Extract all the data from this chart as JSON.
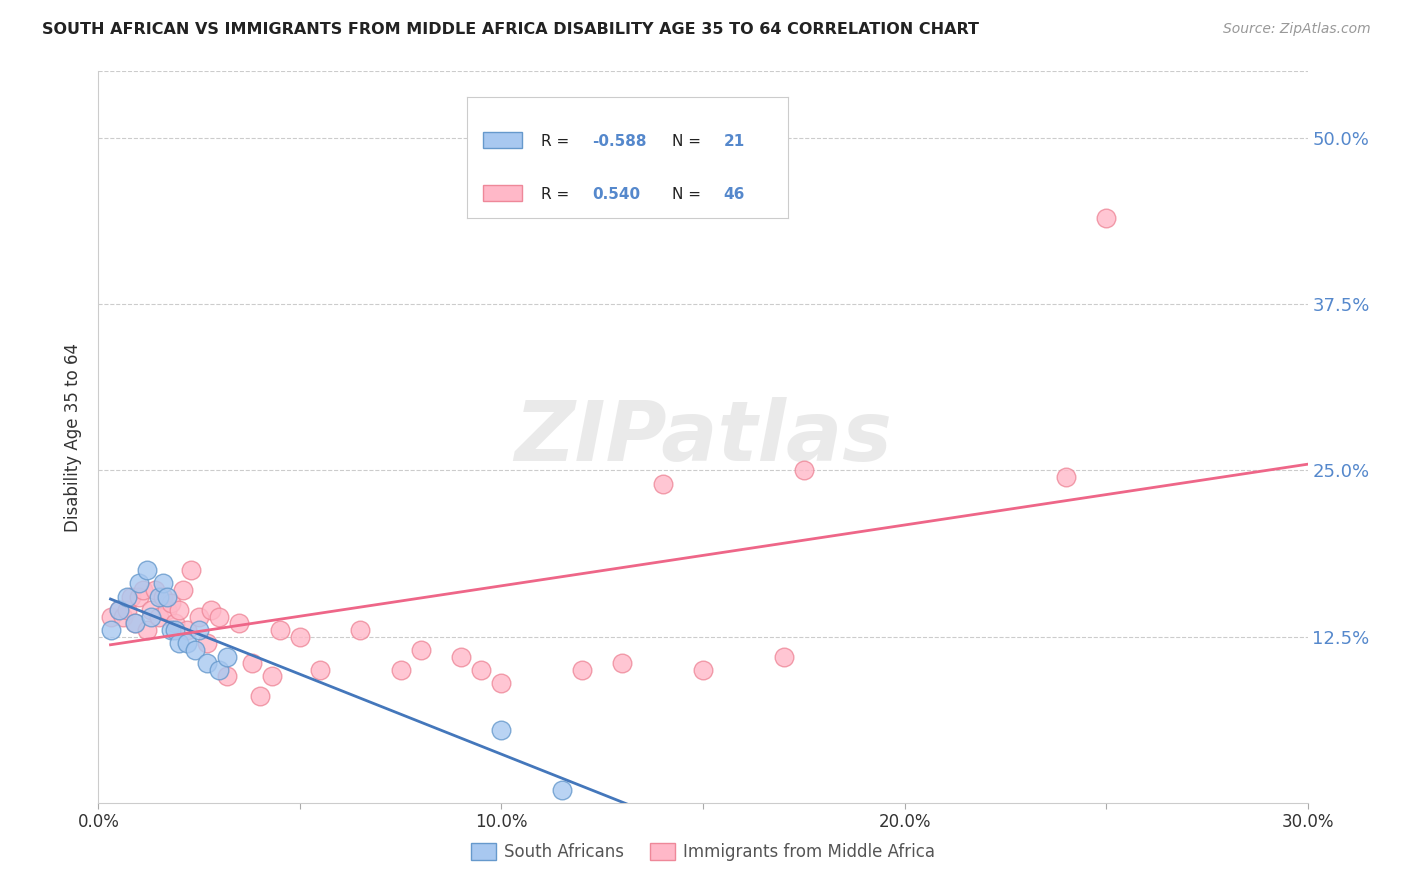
{
  "title": "SOUTH AFRICAN VS IMMIGRANTS FROM MIDDLE AFRICA DISABILITY AGE 35 TO 64 CORRELATION CHART",
  "source": "Source: ZipAtlas.com",
  "ylabel": "Disability Age 35 to 64",
  "xlim": [
    0.0,
    0.3
  ],
  "ylim": [
    0.0,
    0.55
  ],
  "yticks": [
    0.0,
    0.125,
    0.25,
    0.375,
    0.5
  ],
  "ytick_labels": [
    "",
    "12.5%",
    "25.0%",
    "37.5%",
    "50.0%"
  ],
  "xticks": [
    0.0,
    0.05,
    0.1,
    0.15,
    0.2,
    0.25,
    0.3
  ],
  "xtick_labels": [
    "0.0%",
    "",
    "10.0%",
    "",
    "20.0%",
    "",
    "30.0%"
  ],
  "legend_r_blue": "-0.588",
  "legend_n_blue": "21",
  "legend_r_pink": "0.540",
  "legend_n_pink": "46",
  "blue_fill_color": "#a8c8f0",
  "blue_edge_color": "#6699cc",
  "blue_line_color": "#4477bb",
  "pink_fill_color": "#ffb8c8",
  "pink_edge_color": "#ee8899",
  "pink_line_color": "#ee6688",
  "blue_scatter_x": [
    0.003,
    0.005,
    0.007,
    0.009,
    0.01,
    0.012,
    0.013,
    0.015,
    0.016,
    0.017,
    0.018,
    0.019,
    0.02,
    0.022,
    0.024,
    0.025,
    0.027,
    0.03,
    0.032,
    0.1,
    0.115
  ],
  "blue_scatter_y": [
    0.13,
    0.145,
    0.155,
    0.135,
    0.165,
    0.175,
    0.14,
    0.155,
    0.165,
    0.155,
    0.13,
    0.13,
    0.12,
    0.12,
    0.115,
    0.13,
    0.105,
    0.1,
    0.11,
    0.055,
    0.01
  ],
  "pink_scatter_x": [
    0.003,
    0.005,
    0.006,
    0.007,
    0.008,
    0.009,
    0.01,
    0.011,
    0.012,
    0.013,
    0.014,
    0.015,
    0.016,
    0.017,
    0.018,
    0.019,
    0.02,
    0.021,
    0.022,
    0.023,
    0.025,
    0.027,
    0.028,
    0.03,
    0.032,
    0.035,
    0.038,
    0.04,
    0.043,
    0.045,
    0.05,
    0.055,
    0.065,
    0.075,
    0.08,
    0.09,
    0.095,
    0.1,
    0.12,
    0.13,
    0.14,
    0.15,
    0.17,
    0.175,
    0.24,
    0.25
  ],
  "pink_scatter_y": [
    0.14,
    0.145,
    0.14,
    0.145,
    0.155,
    0.135,
    0.155,
    0.16,
    0.13,
    0.145,
    0.16,
    0.14,
    0.155,
    0.145,
    0.15,
    0.135,
    0.145,
    0.16,
    0.13,
    0.175,
    0.14,
    0.12,
    0.145,
    0.14,
    0.095,
    0.135,
    0.105,
    0.08,
    0.095,
    0.13,
    0.125,
    0.1,
    0.13,
    0.1,
    0.115,
    0.11,
    0.1,
    0.09,
    0.1,
    0.105,
    0.24,
    0.1,
    0.11,
    0.25,
    0.245,
    0.44
  ],
  "watermark": "ZIPatlas",
  "background_color": "#ffffff",
  "grid_color": "#cccccc"
}
